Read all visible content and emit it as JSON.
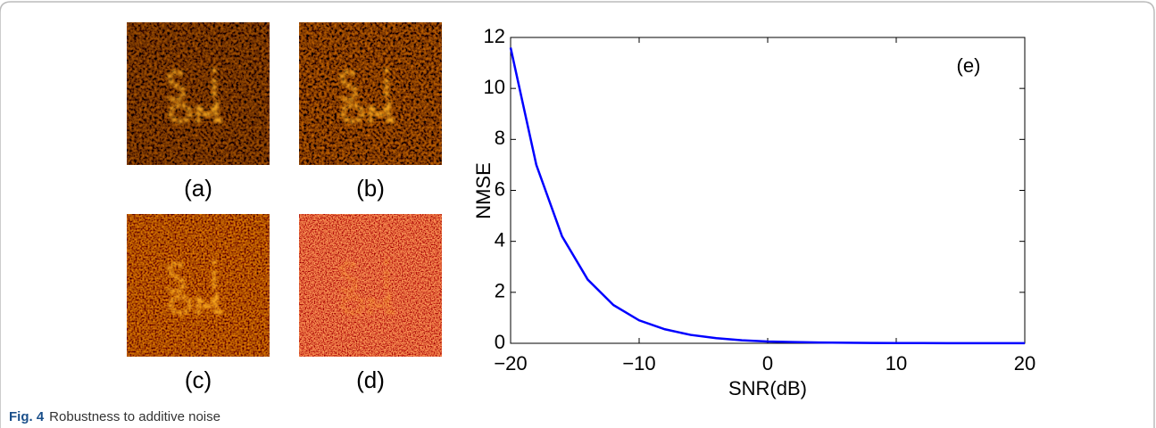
{
  "panels": [
    "(a)",
    "(b)",
    "(c)",
    "(d)"
  ],
  "caption": {
    "label": "Fig. 4",
    "text": "Robustness to additive noise"
  },
  "chart_data": {
    "type": "line",
    "annotation": "(e)",
    "x_label": "SNR(dB)",
    "y_label": "NMSE",
    "x": [
      -20,
      -18,
      -16,
      -14,
      -12,
      -10,
      -8,
      -6,
      -4,
      -2,
      0,
      2,
      4,
      6,
      8,
      10,
      12,
      14,
      16,
      18,
      20
    ],
    "values": [
      11.6,
      7.0,
      4.2,
      2.5,
      1.5,
      0.9,
      0.55,
      0.33,
      0.2,
      0.12,
      0.07,
      0.05,
      0.03,
      0.02,
      0.015,
      0.01,
      0.008,
      0.006,
      0.005,
      0.004,
      0.003
    ],
    "color": "#0000ff",
    "xlim": [
      -20,
      20
    ],
    "ylim": [
      0,
      12
    ],
    "xticks": [
      {
        "value": -20,
        "label": "−20"
      },
      {
        "value": -10,
        "label": "−10"
      },
      0,
      10,
      20
    ],
    "yticks": [
      0,
      2,
      4,
      6,
      8,
      10,
      12
    ]
  }
}
